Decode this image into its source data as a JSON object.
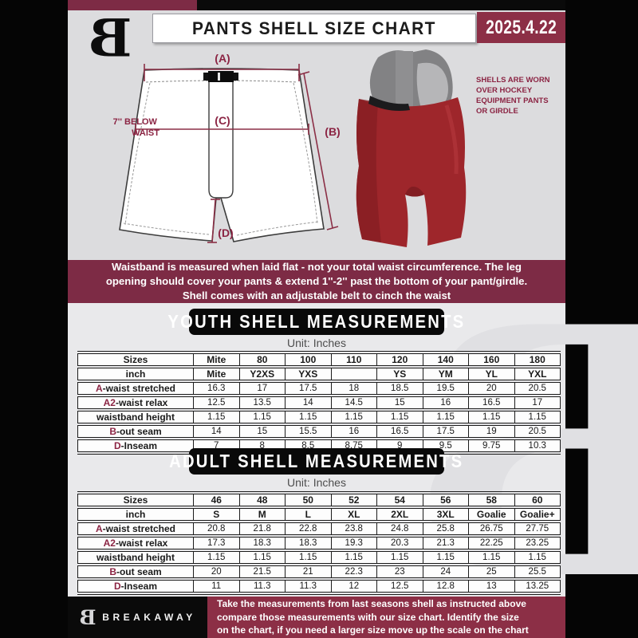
{
  "colors": {
    "maroon_dark": "#7d2b45",
    "maroon_bright": "#8c2f46",
    "maroon_text": "#8b2443",
    "bg_top": "#dcdcde",
    "bg_bottom": "#e9e9eb",
    "frame_black": "#050505",
    "shell_red": "#9e262b"
  },
  "header": {
    "title": "PANTS SHELL SIZE CHART",
    "date": "2025.4.22",
    "logo": "breakaway-b-monogram"
  },
  "diagram": {
    "label_a": "(A)",
    "label_b": "(B)",
    "label_c": "(C)",
    "label_d": "(D)",
    "waist_note": [
      "7'' BELOW",
      "WAIST"
    ],
    "photo_caption": [
      "SHELLS ARE WORN",
      "OVER HOCKEY",
      "EQUIPMENT PANTS",
      "OR GIRDLE"
    ]
  },
  "notice_lines": [
    "Waistband is measured when laid flat - not your total waist circumference. The leg",
    "opening should cover your pants & extend 1''-2'' past the bottom of your pant/girdle.",
    "Shell comes with an adjustable belt to cinch the waist"
  ],
  "youth": {
    "heading": "YOUTH SHELL MEASUREMENTS",
    "unit": "Unit: Inches",
    "rows": [
      {
        "label": {
          "prefix": "",
          "text": "Sizes"
        },
        "bold": true,
        "values": [
          "Mite",
          "80",
          "100",
          "110",
          "120",
          "140",
          "160",
          "180"
        ]
      },
      {
        "label": {
          "prefix": "",
          "text": "inch"
        },
        "bold": true,
        "values": [
          "Mite",
          "Y2XS",
          "YXS",
          "",
          "YS",
          "YM",
          "YL",
          "YXL"
        ]
      },
      {
        "label": {
          "prefix": "A",
          "text": "-waist stretched"
        },
        "bold": false,
        "values": [
          "16.3",
          "17",
          "17.5",
          "18",
          "18.5",
          "19.5",
          "20",
          "20.5"
        ]
      },
      {
        "label": {
          "prefix": "A2",
          "text": "-waist relax"
        },
        "bold": false,
        "values": [
          "12.5",
          "13.5",
          "14",
          "14.5",
          "15",
          "16",
          "16.5",
          "17"
        ]
      },
      {
        "label": {
          "prefix": "",
          "text": "waistband height"
        },
        "bold": false,
        "values": [
          "1.15",
          "1.15",
          "1.15",
          "1.15",
          "1.15",
          "1.15",
          "1.15",
          "1.15"
        ]
      },
      {
        "label": {
          "prefix": "B",
          "text": "-out seam"
        },
        "bold": false,
        "values": [
          "14",
          "15",
          "15.5",
          "16",
          "16.5",
          "17.5",
          "19",
          "20.5"
        ]
      },
      {
        "label": {
          "prefix": "D",
          "text": "-Inseam"
        },
        "bold": false,
        "values": [
          "7",
          "8",
          "8.5",
          "8.75",
          "9",
          "9.5",
          "9.75",
          "10.3"
        ]
      }
    ]
  },
  "adult": {
    "heading": "ADULT SHELL MEASUREMENTS",
    "unit": "Unit: Inches",
    "rows": [
      {
        "label": {
          "prefix": "",
          "text": "Sizes"
        },
        "bold": true,
        "values": [
          "46",
          "48",
          "50",
          "52",
          "54",
          "56",
          "58",
          "60"
        ]
      },
      {
        "label": {
          "prefix": "",
          "text": "inch"
        },
        "bold": true,
        "values": [
          "S",
          "M",
          "L",
          "XL",
          "2XL",
          "3XL",
          "Goalie",
          "Goalie+"
        ]
      },
      {
        "label": {
          "prefix": "A",
          "text": "-waist stretched"
        },
        "bold": false,
        "values": [
          "20.8",
          "21.8",
          "22.8",
          "23.8",
          "24.8",
          "25.8",
          "26.75",
          "27.75"
        ]
      },
      {
        "label": {
          "prefix": "A2",
          "text": "-waist relax"
        },
        "bold": false,
        "values": [
          "17.3",
          "18.3",
          "18.3",
          "19.3",
          "20.3",
          "21.3",
          "22.25",
          "23.25"
        ]
      },
      {
        "label": {
          "prefix": "",
          "text": "waistband height"
        },
        "bold": false,
        "values": [
          "1.15",
          "1.15",
          "1.15",
          "1.15",
          "1.15",
          "1.15",
          "1.15",
          "1.15"
        ]
      },
      {
        "label": {
          "prefix": "B",
          "text": "-out seam"
        },
        "bold": false,
        "values": [
          "20",
          "21.5",
          "21",
          "22.3",
          "23",
          "24",
          "25",
          "25.5"
        ]
      },
      {
        "label": {
          "prefix": "D",
          "text": "-Inseam"
        },
        "bold": false,
        "values": [
          "11",
          "11.3",
          "11.3",
          "12",
          "12.5",
          "12.8",
          "13",
          "13.25"
        ]
      }
    ]
  },
  "footer": {
    "brand": "BREAKAWAY",
    "note_lines": [
      "Take the measurements from last seasons shell as instructed above",
      "compare those measurements  with our size chart. Identify the size",
      "on the chart, if you need a larger size move up the scale on the chart"
    ]
  }
}
